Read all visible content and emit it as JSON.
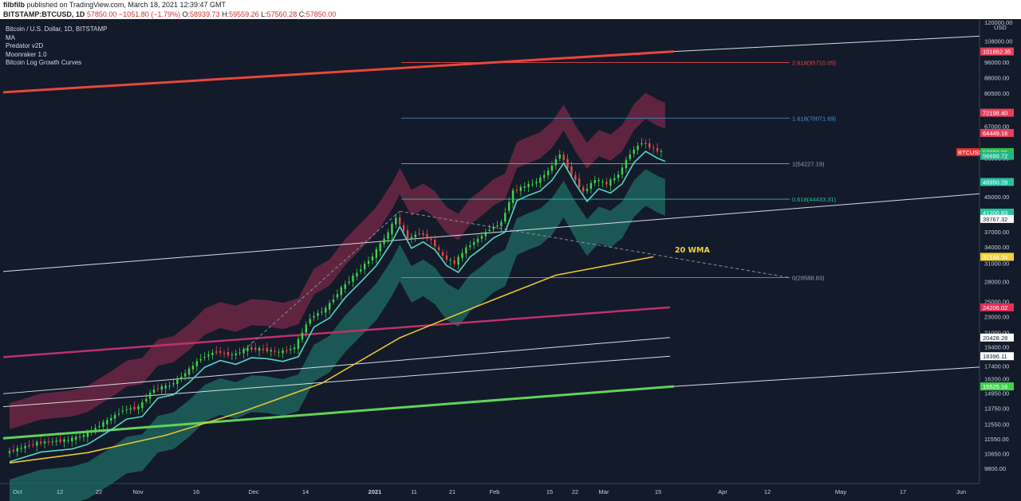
{
  "header": {
    "author": "filbfilb",
    "published": "published on TradingView.com, March 18, 2021 12:39:47 GMT"
  },
  "ohlc": {
    "symbol": "BITSTAMP:BTCUSD, 1D",
    "last": "57850.00",
    "change": "−1051.80 (−1.79%)",
    "o_label": "O:",
    "o": "58939.73",
    "h_label": "H:",
    "h": "59559.26",
    "l_label": "L:",
    "l": "57560.28",
    "c_label": "C:",
    "c": "57850.00"
  },
  "legend": [
    "Bitcoin / U.S. Dollar, 1D, BITSTAMP",
    "MA",
    "Predator v2D",
    "Moonraker 1.0",
    "Bitcoin Log Growth Curves"
  ],
  "annotation": "20 WMA",
  "colors": {
    "background": "#131a2a",
    "up": "#3fd34a",
    "down": "#e84747",
    "ma_line": "#e8c534",
    "baseline": "#52d6c3",
    "upper_band": "#7a2a48",
    "lower_band": "#1f6e62"
  },
  "chart_data": {
    "type": "line",
    "scale": "log",
    "currency_label": "USD",
    "symbol_tag": "BTCUSD",
    "x_ticks": [
      "Oct",
      "12",
      "22",
      "Nov",
      "16",
      "Dec",
      "14",
      "2021",
      "11",
      "21",
      "Feb",
      "15",
      "22",
      "Mar",
      "15",
      "Apr",
      "12",
      "May",
      "17",
      "Jun"
    ],
    "y_ticks": [
      "120000.00",
      "108000.00",
      "96000.00",
      "88000.00",
      "80500.00",
      "67000.00",
      "56000.00",
      "45000.00",
      "37000.00",
      "34000.00",
      "31000.00",
      "28000.00",
      "25000.00",
      "23000.00",
      "21000.00",
      "19400.00",
      "17400.00",
      "16200.00",
      "14950.00",
      "13750.00",
      "12550.00",
      "11550.00",
      "10650.00",
      "9800.00"
    ],
    "price_labels": [
      {
        "text": "101862.35",
        "value": 101862.35,
        "color": "#e8405a"
      },
      {
        "text": "72198.40",
        "value": 72198.4,
        "color": "#e8405a"
      },
      {
        "text": "64449.16",
        "value": 64449.16,
        "color": "#e8405a"
      },
      {
        "text": "57850.00",
        "value": 57850,
        "color": "#e83030",
        "tag": "BTCUSD"
      },
      {
        "text": "57893.95",
        "value": 57893.95,
        "color": "#2fbf4a"
      },
      {
        "text": "56699.72",
        "value": 56699.72,
        "color": "#25b58a"
      },
      {
        "text": "56699.72",
        "value": 56699.72,
        "color": "#25b58a"
      },
      {
        "text": "48950.28",
        "value": 48950.28,
        "color": "#25c2a0"
      },
      {
        "text": "41200.83",
        "value": 41200.83,
        "color": "#25c2a0"
      },
      {
        "text": "39767.32",
        "value": 39767.32,
        "color": "#ffffff"
      },
      {
        "text": "32144.34",
        "value": 32144.34,
        "color": "#f0d13b"
      },
      {
        "text": "24206.02",
        "value": 24206.02,
        "color": "#e0305a"
      },
      {
        "text": "20428.28",
        "value": 20428.28,
        "color": "#ffffff"
      },
      {
        "text": "18396.11",
        "value": 18396.11,
        "color": "#ffffff"
      },
      {
        "text": "15525.16",
        "value": 15525.16,
        "color": "#3fd34a"
      }
    ],
    "fib_levels": [
      {
        "label": "2.618(95710.05)",
        "value": 95710.05,
        "color": "#e84747"
      },
      {
        "label": "1.618(70071.69)",
        "value": 70071.69,
        "color": "#3d9bd8"
      },
      {
        "label": "1(54227.19)",
        "value": 54227.19,
        "color": "#9aa0a8"
      },
      {
        "label": "0.618(44433.31)",
        "value": 44433.31,
        "color": "#25c2a0"
      },
      {
        "label": "0(28588.83)",
        "value": 28588.83,
        "color": "#9aa0a8"
      }
    ],
    "price_series": [
      {
        "t": 0,
        "v": 10700
      },
      {
        "t": 8,
        "v": 11300
      },
      {
        "t": 16,
        "v": 11500
      },
      {
        "t": 20,
        "v": 11800
      },
      {
        "t": 26,
        "v": 12800
      },
      {
        "t": 30,
        "v": 13600
      },
      {
        "t": 34,
        "v": 13800
      },
      {
        "t": 38,
        "v": 15300
      },
      {
        "t": 42,
        "v": 15600
      },
      {
        "t": 46,
        "v": 16700
      },
      {
        "t": 50,
        "v": 18200
      },
      {
        "t": 54,
        "v": 18900
      },
      {
        "t": 58,
        "v": 18500
      },
      {
        "t": 62,
        "v": 19200
      },
      {
        "t": 66,
        "v": 19100
      },
      {
        "t": 70,
        "v": 18800
      },
      {
        "t": 74,
        "v": 19300
      },
      {
        "t": 78,
        "v": 22800
      },
      {
        "t": 82,
        "v": 24000
      },
      {
        "t": 86,
        "v": 26900
      },
      {
        "t": 90,
        "v": 29400
      },
      {
        "t": 94,
        "v": 32200
      },
      {
        "t": 98,
        "v": 36800
      },
      {
        "t": 100,
        "v": 40100
      },
      {
        "t": 103,
        "v": 35500
      },
      {
        "t": 106,
        "v": 36800
      },
      {
        "t": 109,
        "v": 35200
      },
      {
        "t": 112,
        "v": 32200
      },
      {
        "t": 115,
        "v": 31000
      },
      {
        "t": 118,
        "v": 33800
      },
      {
        "t": 121,
        "v": 35500
      },
      {
        "t": 124,
        "v": 37600
      },
      {
        "t": 127,
        "v": 38900
      },
      {
        "t": 130,
        "v": 46400
      },
      {
        "t": 133,
        "v": 47800
      },
      {
        "t": 136,
        "v": 49000
      },
      {
        "t": 139,
        "v": 52000
      },
      {
        "t": 142,
        "v": 57300
      },
      {
        "t": 145,
        "v": 51000
      },
      {
        "t": 148,
        "v": 46200
      },
      {
        "t": 151,
        "v": 49600
      },
      {
        "t": 154,
        "v": 48400
      },
      {
        "t": 157,
        "v": 51000
      },
      {
        "t": 160,
        "v": 57400
      },
      {
        "t": 163,
        "v": 61200
      },
      {
        "t": 166,
        "v": 58900
      },
      {
        "t": 168,
        "v": 57850
      }
    ],
    "wma_series": [
      {
        "t": 0,
        "v": 10100
      },
      {
        "t": 20,
        "v": 10700
      },
      {
        "t": 40,
        "v": 11800
      },
      {
        "t": 60,
        "v": 13500
      },
      {
        "t": 80,
        "v": 15800
      },
      {
        "t": 100,
        "v": 20400
      },
      {
        "t": 120,
        "v": 24400
      },
      {
        "t": 140,
        "v": 29000
      },
      {
        "t": 165,
        "v": 32144
      }
    ],
    "x_range": [
      0,
      250
    ]
  }
}
